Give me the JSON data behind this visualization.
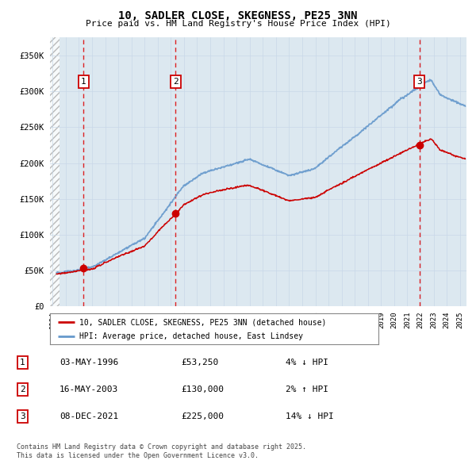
{
  "title": "10, SADLER CLOSE, SKEGNESS, PE25 3NN",
  "subtitle": "Price paid vs. HM Land Registry's House Price Index (HPI)",
  "ylim": [
    0,
    375000
  ],
  "yticks": [
    0,
    50000,
    100000,
    150000,
    200000,
    250000,
    300000,
    350000
  ],
  "ytick_labels": [
    "£0",
    "£50K",
    "£100K",
    "£150K",
    "£200K",
    "£250K",
    "£300K",
    "£350K"
  ],
  "xmin": 1993.8,
  "xmax": 2025.5,
  "sale_dates": [
    1996.34,
    2003.37,
    2021.92
  ],
  "sale_prices": [
    53250,
    130000,
    225000
  ],
  "sale_labels": [
    "1",
    "2",
    "3"
  ],
  "legend_line1": "10, SADLER CLOSE, SKEGNESS, PE25 3NN (detached house)",
  "legend_line2": "HPI: Average price, detached house, East Lindsey",
  "table_rows": [
    [
      "1",
      "03-MAY-1996",
      "£53,250",
      "4% ↓ HPI"
    ],
    [
      "2",
      "16-MAY-2003",
      "£130,000",
      "2% ↑ HPI"
    ],
    [
      "3",
      "08-DEC-2021",
      "£225,000",
      "14% ↓ HPI"
    ]
  ],
  "footnote": "Contains HM Land Registry data © Crown copyright and database right 2025.\nThis data is licensed under the Open Government Licence v3.0.",
  "hpi_color": "#6699cc",
  "price_color": "#cc0000",
  "grid_color": "#c8d8e8",
  "background_color": "#dce8f0"
}
